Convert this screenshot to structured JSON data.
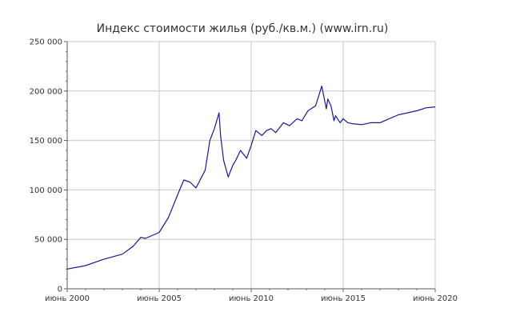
{
  "chart_data": {
    "type": "line",
    "title": "Индекс стоимости жилья (руб./кв.м.) (www.irn.ru)",
    "xlabel": "",
    "ylabel": "",
    "x_ticks": [
      "июнь 2000",
      "июнь 2005",
      "июнь 2010",
      "июнь 2015",
      "июнь 2020"
    ],
    "y_ticks": [
      "0",
      "50 000",
      "100 000",
      "150 000",
      "200 000",
      "250 000"
    ],
    "xlim": [
      "2000-06",
      "2020-06"
    ],
    "ylim": [
      0,
      250000
    ],
    "grid": true,
    "legend": "none",
    "series": [
      {
        "color": "#1a1a8c",
        "x": [
          "2000-06",
          "2001-06",
          "2002-06",
          "2003-06",
          "2004-01",
          "2004-06",
          "2004-09",
          "2005-06",
          "2005-12",
          "2006-06",
          "2006-10",
          "2007-02",
          "2007-06",
          "2007-12",
          "2008-03",
          "2008-06",
          "2008-09",
          "2008-10",
          "2008-12",
          "2009-03",
          "2009-06",
          "2009-08",
          "2009-11",
          "2010-03",
          "2010-06",
          "2010-09",
          "2011-01",
          "2011-04",
          "2011-07",
          "2011-10",
          "2012-03",
          "2012-07",
          "2012-12",
          "2013-03",
          "2013-07",
          "2013-12",
          "2014-04",
          "2014-07",
          "2014-08",
          "2014-10",
          "2014-12",
          "2015-01",
          "2015-04",
          "2015-06",
          "2015-09",
          "2015-12",
          "2016-06",
          "2016-12",
          "2017-06",
          "2017-12",
          "2018-06",
          "2018-12",
          "2019-06",
          "2019-12",
          "2020-06"
        ],
        "y": [
          20000,
          23500,
          30000,
          35000,
          43000,
          52000,
          51000,
          57000,
          72000,
          95000,
          110000,
          108000,
          102000,
          120000,
          150000,
          162000,
          178000,
          155000,
          130000,
          113000,
          125000,
          130000,
          140000,
          132000,
          145000,
          160000,
          155000,
          160000,
          162000,
          158000,
          168000,
          165000,
          172000,
          170000,
          180000,
          185000,
          205000,
          182000,
          192000,
          185000,
          170000,
          175000,
          168000,
          172000,
          168000,
          167000,
          166000,
          168000,
          168000,
          172000,
          176000,
          178000,
          180000,
          183000,
          184000
        ]
      }
    ]
  }
}
